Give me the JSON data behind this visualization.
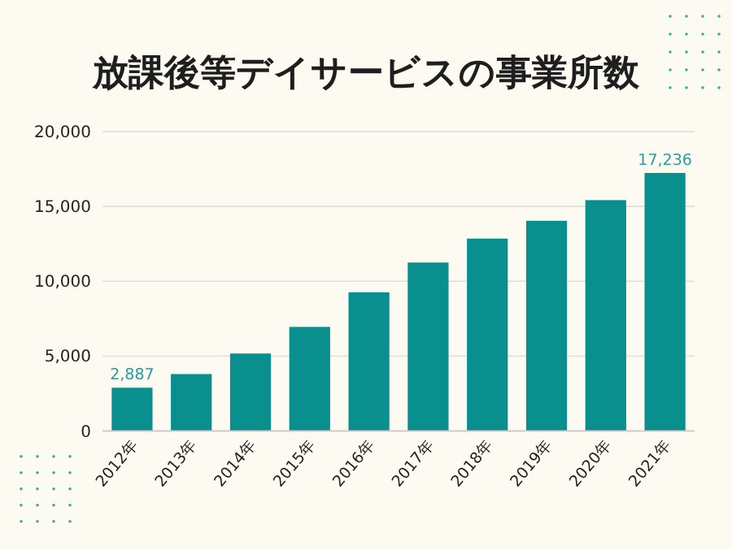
{
  "chart_data": {
    "type": "bar",
    "title": "放課後等デイサービスの事業所数",
    "categories": [
      "2012年",
      "2013年",
      "2014年",
      "2015年",
      "2016年",
      "2017年",
      "2018年",
      "2019年",
      "2020年",
      "2021年"
    ],
    "values": [
      2887,
      3800,
      5170,
      6950,
      9260,
      11250,
      12850,
      14040,
      15420,
      17236
    ],
    "value_labels": [
      "2,887",
      null,
      null,
      null,
      null,
      null,
      null,
      null,
      null,
      "17,236"
    ],
    "color": "#0a8f8f",
    "ylim": [
      0,
      20000
    ],
    "yticks": [
      {
        "value": 0,
        "label": "0"
      },
      {
        "value": 5000,
        "label": "5,000"
      },
      {
        "value": 10000,
        "label": "10,000"
      },
      {
        "value": 15000,
        "label": "15,000"
      },
      {
        "value": 20000,
        "label": "20,000"
      }
    ],
    "grid": "y"
  }
}
